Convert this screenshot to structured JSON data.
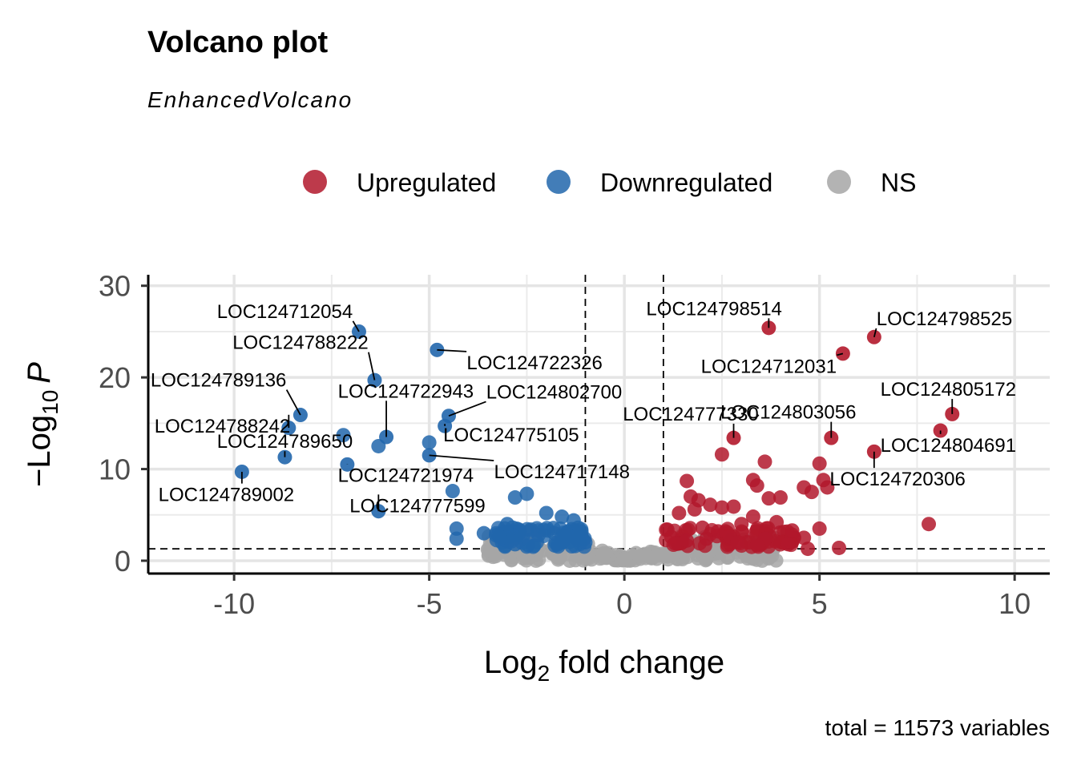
{
  "chart_data": {
    "type": "scatter",
    "title": "Volcano plot",
    "subtitle": "EnhancedVolcano",
    "xlabel_main": "Log",
    "xlabel_sub": "2",
    "xlabel_rest": " fold change",
    "ylabel_prefix": "−Log",
    "ylabel_sub": "10",
    "ylabel_italic": "P",
    "caption": "total = 11573 variables",
    "xlim": [
      -12.2,
      10.9
    ],
    "ylim": [
      -1.4,
      31.2
    ],
    "x_ticks": [
      -10,
      -5,
      0,
      5,
      10
    ],
    "x_tick_labels": [
      "-10",
      "-5",
      "0",
      "5",
      "10"
    ],
    "y_ticks": [
      0,
      10,
      20,
      30
    ],
    "y_tick_labels": [
      "0",
      "10",
      "20",
      "30"
    ],
    "fc_cutoff": 1,
    "p_cutoff_neglog10": 1.3,
    "legend": {
      "position": "top",
      "items": [
        {
          "label": "Upregulated",
          "color": "#b2182b"
        },
        {
          "label": "Downregulated",
          "color": "#2166ac"
        },
        {
          "label": "NS",
          "color": "#a6a6a6"
        }
      ]
    },
    "colors": {
      "Upregulated": "#b2182b",
      "Downregulated": "#2166ac",
      "NS": "#a6a6a6"
    },
    "labeled_points": [
      {
        "label": "LOC124712054",
        "x": -6.8,
        "y": 25.0,
        "group": "Downregulated",
        "lx": -8.7,
        "ly": 26.5
      },
      {
        "label": "LOC124788222",
        "x": -6.4,
        "y": 19.7,
        "group": "Downregulated",
        "lx": -8.3,
        "ly": 23.1
      },
      {
        "label": "LOC124722326",
        "x": -4.8,
        "y": 23.0,
        "group": "Downregulated",
        "lx": -2.3,
        "ly": 20.9
      },
      {
        "label": "LOC124789136",
        "x": -8.3,
        "y": 15.9,
        "group": "Downregulated",
        "lx": -10.4,
        "ly": 19.0
      },
      {
        "label": "LOC124722943",
        "x": -6.1,
        "y": 13.5,
        "group": "Downregulated",
        "lx": -5.6,
        "ly": 17.8
      },
      {
        "label": "LOC124802700",
        "x": -4.5,
        "y": 15.8,
        "group": "Downregulated",
        "lx": -1.8,
        "ly": 17.7
      },
      {
        "label": "LOC124788242",
        "x": -8.6,
        "y": 14.5,
        "group": "Downregulated",
        "lx": -10.3,
        "ly": 14.0
      },
      {
        "label": "LOC124775105",
        "x": -4.6,
        "y": 14.7,
        "group": "Downregulated",
        "lx": -2.9,
        "ly": 13.0
      },
      {
        "label": "LOC124789650",
        "x": -8.7,
        "y": 11.3,
        "group": "Downregulated",
        "lx": -8.7,
        "ly": 12.3
      },
      {
        "label": "LOC124721974",
        "x": -7.1,
        "y": 10.5,
        "group": "Downregulated",
        "lx": -5.6,
        "ly": 8.6
      },
      {
        "label": "LOC124717148",
        "x": -5.0,
        "y": 11.5,
        "group": "Downregulated",
        "lx": -1.6,
        "ly": 9.0
      },
      {
        "label": "LOC124789002",
        "x": -9.8,
        "y": 9.7,
        "group": "Downregulated",
        "lx": -10.2,
        "ly": 6.5
      },
      {
        "label": "LOC124777599",
        "x": -6.3,
        "y": 5.4,
        "group": "Downregulated",
        "lx": -5.3,
        "ly": 5.3
      },
      {
        "label": "LOC124798514",
        "x": 3.7,
        "y": 25.4,
        "group": "Upregulated",
        "lx": 2.3,
        "ly": 26.8
      },
      {
        "label": "LOC124798525",
        "x": 6.4,
        "y": 24.4,
        "group": "Upregulated",
        "lx": 8.2,
        "ly": 25.7
      },
      {
        "label": "LOC124712031",
        "x": 5.6,
        "y": 22.6,
        "group": "Upregulated",
        "lx": 3.7,
        "ly": 20.5
      },
      {
        "label": "LOC124805172",
        "x": 8.4,
        "y": 16.0,
        "group": "Upregulated",
        "lx": 8.3,
        "ly": 18.0
      },
      {
        "label": "LOC124777330",
        "x": 2.8,
        "y": 13.4,
        "group": "Upregulated",
        "lx": 1.7,
        "ly": 15.3
      },
      {
        "label": "LOC124803056",
        "x": 5.3,
        "y": 13.4,
        "group": "Upregulated",
        "lx": 4.2,
        "ly": 15.5
      },
      {
        "label": "LOC124804691",
        "x": 8.1,
        "y": 14.2,
        "group": "Upregulated",
        "lx": 8.3,
        "ly": 11.9
      },
      {
        "label": "LOC124720306",
        "x": 6.4,
        "y": 11.9,
        "group": "Upregulated",
        "lx": 7.0,
        "ly": 8.2
      }
    ],
    "extra_points": {
      "Downregulated": [
        [
          -7.2,
          13.7
        ],
        [
          -6.3,
          12.5
        ],
        [
          -5.0,
          12.9
        ],
        [
          -4.4,
          7.6
        ],
        [
          -2.8,
          6.9
        ],
        [
          -2.5,
          7.3
        ],
        [
          -4.3,
          3.5
        ],
        [
          -4.3,
          2.4
        ],
        [
          -3.6,
          3.0
        ],
        [
          -3.2,
          2.6
        ],
        [
          -2.9,
          2.1
        ],
        [
          -2.6,
          2.5
        ],
        [
          -2.4,
          3.4
        ],
        [
          -2.0,
          5.2
        ],
        [
          -1.6,
          4.8
        ],
        [
          -1.3,
          4.4
        ],
        [
          -2.2,
          2.8
        ],
        [
          -1.8,
          3.0
        ],
        [
          -1.5,
          2.6
        ],
        [
          -1.2,
          2.3
        ],
        [
          -1.1,
          3.2
        ],
        [
          -1.0,
          2.0
        ],
        [
          -2.8,
          1.8
        ],
        [
          -3.0,
          4.0
        ]
      ],
      "Upregulated": [
        [
          2.5,
          11.6
        ],
        [
          3.6,
          10.8
        ],
        [
          3.3,
          8.8
        ],
        [
          3.4,
          8.2
        ],
        [
          3.7,
          6.8
        ],
        [
          4.0,
          6.9
        ],
        [
          4.6,
          8.0
        ],
        [
          4.8,
          7.5
        ],
        [
          5.1,
          8.8
        ],
        [
          5.2,
          8.0
        ],
        [
          5.0,
          10.6
        ],
        [
          7.8,
          4.0
        ],
        [
          5.0,
          3.5
        ],
        [
          5.5,
          1.4
        ],
        [
          4.7,
          1.3
        ],
        [
          1.6,
          8.7
        ],
        [
          1.7,
          7.0
        ],
        [
          1.9,
          6.6
        ],
        [
          2.2,
          6.1
        ],
        [
          2.5,
          5.8
        ],
        [
          2.8,
          5.9
        ],
        [
          3.3,
          4.8
        ],
        [
          1.4,
          5.2
        ],
        [
          1.8,
          5.6
        ],
        [
          3.0,
          4.0
        ],
        [
          3.9,
          4.2
        ],
        [
          4.3,
          3.3
        ],
        [
          4.6,
          2.5
        ],
        [
          2.0,
          3.6
        ],
        [
          2.4,
          3.2
        ],
        [
          2.7,
          2.6
        ],
        [
          1.2,
          2.6
        ],
        [
          1.6,
          2.2
        ],
        [
          3.6,
          2.4
        ],
        [
          4.2,
          1.8
        ],
        [
          1.1,
          3.4
        ],
        [
          2.9,
          2.0
        ],
        [
          3.4,
          1.7
        ],
        [
          1.3,
          1.9
        ],
        [
          2.1,
          2.4
        ]
      ]
    },
    "ns_cloud": {
      "x_range": [
        -3.5,
        3.9
      ],
      "max_y": 2.8,
      "count": 260
    }
  }
}
